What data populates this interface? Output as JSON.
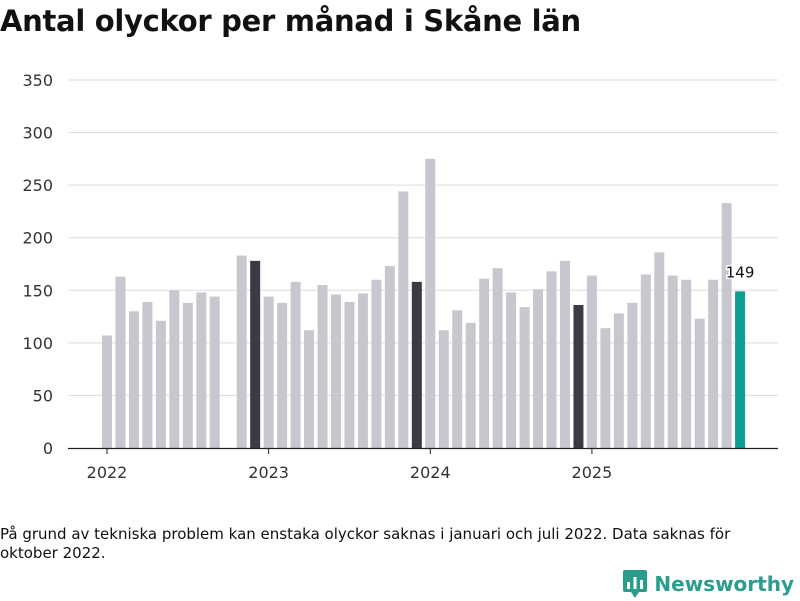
{
  "title": "Antal olyckor per månad i Skåne län",
  "footnote": "På grund av tekniska problem kan enstaka olyckor saknas i januari och juli 2022. Data saknas för oktober 2022.",
  "brand": {
    "name": "Newsworthy",
    "color": "#2a9d8f"
  },
  "colors": {
    "bar": "#c8c7d0",
    "december": "#3b3b45",
    "latest": "#0f9e96",
    "grid": "#dddddd",
    "axis": "#222222"
  },
  "chart_data": {
    "type": "bar",
    "title": "Antal olyckor per månad i Skåne län",
    "xlabel": "",
    "ylabel": "",
    "ylim": [
      0,
      350
    ],
    "yticks": [
      0,
      50,
      100,
      150,
      200,
      250,
      300,
      350
    ],
    "x_tick_labels": [
      "2022",
      "2023",
      "2024",
      "2025"
    ],
    "highlighted_label": "149",
    "series": [
      {
        "name": "Antal olyckor",
        "points": [
          {
            "month": "2022-01",
            "value": 107,
            "kind": "normal"
          },
          {
            "month": "2022-02",
            "value": 163,
            "kind": "normal"
          },
          {
            "month": "2022-03",
            "value": 130,
            "kind": "normal"
          },
          {
            "month": "2022-04",
            "value": 139,
            "kind": "normal"
          },
          {
            "month": "2022-05",
            "value": 121,
            "kind": "normal"
          },
          {
            "month": "2022-06",
            "value": 150,
            "kind": "normal"
          },
          {
            "month": "2022-07",
            "value": 138,
            "kind": "normal"
          },
          {
            "month": "2022-08",
            "value": 148,
            "kind": "normal"
          },
          {
            "month": "2022-09",
            "value": 144,
            "kind": "normal"
          },
          {
            "month": "2022-10",
            "value": null,
            "kind": "missing"
          },
          {
            "month": "2022-11",
            "value": 183,
            "kind": "normal"
          },
          {
            "month": "2022-12",
            "value": 178,
            "kind": "december"
          },
          {
            "month": "2023-01",
            "value": 144,
            "kind": "normal"
          },
          {
            "month": "2023-02",
            "value": 138,
            "kind": "normal"
          },
          {
            "month": "2023-03",
            "value": 158,
            "kind": "normal"
          },
          {
            "month": "2023-04",
            "value": 112,
            "kind": "normal"
          },
          {
            "month": "2023-05",
            "value": 155,
            "kind": "normal"
          },
          {
            "month": "2023-06",
            "value": 146,
            "kind": "normal"
          },
          {
            "month": "2023-07",
            "value": 139,
            "kind": "normal"
          },
          {
            "month": "2023-08",
            "value": 147,
            "kind": "normal"
          },
          {
            "month": "2023-09",
            "value": 160,
            "kind": "normal"
          },
          {
            "month": "2023-10",
            "value": 173,
            "kind": "normal"
          },
          {
            "month": "2023-11",
            "value": 244,
            "kind": "normal"
          },
          {
            "month": "2023-12",
            "value": 158,
            "kind": "december"
          },
          {
            "month": "2024-01",
            "value": 275,
            "kind": "normal"
          },
          {
            "month": "2024-02",
            "value": 112,
            "kind": "normal"
          },
          {
            "month": "2024-03",
            "value": 131,
            "kind": "normal"
          },
          {
            "month": "2024-04",
            "value": 119,
            "kind": "normal"
          },
          {
            "month": "2024-05",
            "value": 161,
            "kind": "normal"
          },
          {
            "month": "2024-06",
            "value": 171,
            "kind": "normal"
          },
          {
            "month": "2024-07",
            "value": 148,
            "kind": "normal"
          },
          {
            "month": "2024-08",
            "value": 134,
            "kind": "normal"
          },
          {
            "month": "2024-09",
            "value": 151,
            "kind": "normal"
          },
          {
            "month": "2024-10",
            "value": 168,
            "kind": "normal"
          },
          {
            "month": "2024-11",
            "value": 178,
            "kind": "normal"
          },
          {
            "month": "2024-12",
            "value": 136,
            "kind": "december"
          },
          {
            "month": "2025-01",
            "value": 164,
            "kind": "normal"
          },
          {
            "month": "2025-02",
            "value": 114,
            "kind": "normal"
          },
          {
            "month": "2025-03",
            "value": 128,
            "kind": "normal"
          },
          {
            "month": "2025-04",
            "value": 138,
            "kind": "normal"
          },
          {
            "month": "2025-05",
            "value": 165,
            "kind": "normal"
          },
          {
            "month": "2025-06",
            "value": 186,
            "kind": "normal"
          },
          {
            "month": "2025-07",
            "value": 164,
            "kind": "normal"
          },
          {
            "month": "2025-08",
            "value": 160,
            "kind": "normal"
          },
          {
            "month": "2025-09",
            "value": 123,
            "kind": "normal"
          },
          {
            "month": "2025-10",
            "value": 160,
            "kind": "normal"
          },
          {
            "month": "2025-11",
            "value": 233,
            "kind": "normal"
          },
          {
            "month": "2025-12",
            "value": 149,
            "kind": "latest"
          }
        ]
      }
    ]
  }
}
